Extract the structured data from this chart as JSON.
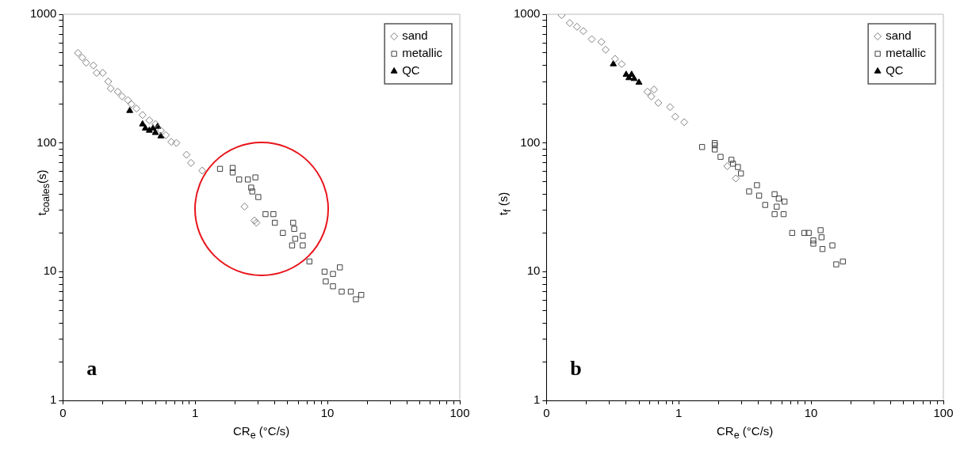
{
  "chart_data": [
    {
      "type": "scatter",
      "xlabel": "CR$_{e}$ (°C/s)",
      "ylabel": "t$_{coales}$(s)",
      "log": "xy",
      "legend": "top right",
      "annotations": [
        "a"
      ],
      "xlim": [
        0.1,
        100
      ],
      "ylim": [
        1,
        1000
      ],
      "xticks": [
        {
          "value": 0.1,
          "label": "0"
        },
        {
          "value": 0.2,
          "label": null
        },
        {
          "value": 0.3,
          "label": null
        },
        {
          "value": 0.4,
          "label": null
        },
        {
          "value": 0.5,
          "label": null
        },
        {
          "value": 0.6,
          "label": null
        },
        {
          "value": 0.7,
          "label": null
        },
        {
          "value": 0.8,
          "label": null
        },
        {
          "value": 0.9,
          "label": null
        },
        1,
        {
          "value": 2,
          "label": null
        },
        {
          "value": 3,
          "label": null
        },
        {
          "value": 4,
          "label": null
        },
        {
          "value": 5,
          "label": null
        },
        {
          "value": 6,
          "label": null
        },
        {
          "value": 7,
          "label": null
        },
        {
          "value": 8,
          "label": null
        },
        {
          "value": 9,
          "label": null
        },
        10,
        {
          "value": 20,
          "label": null
        },
        {
          "value": 30,
          "label": null
        },
        {
          "value": 40,
          "label": null
        },
        {
          "value": 50,
          "label": null
        },
        {
          "value": 60,
          "label": null
        },
        {
          "value": 70,
          "label": null
        },
        {
          "value": 80,
          "label": null
        },
        {
          "value": 90,
          "label": null
        },
        100
      ],
      "yticks": [
        1,
        {
          "value": 2,
          "label": null
        },
        {
          "value": 3,
          "label": null
        },
        {
          "value": 4,
          "label": null
        },
        {
          "value": 5,
          "label": null
        },
        {
          "value": 6,
          "label": null
        },
        {
          "value": 7,
          "label": null
        },
        {
          "value": 8,
          "label": null
        },
        {
          "value": 9,
          "label": null
        },
        10,
        {
          "value": 20,
          "label": null
        },
        {
          "value": 30,
          "label": null
        },
        {
          "value": 40,
          "label": null
        },
        {
          "value": 50,
          "label": null
        },
        {
          "value": 60,
          "label": null
        },
        {
          "value": 70,
          "label": null
        },
        {
          "value": 80,
          "label": null
        },
        {
          "value": 90,
          "label": null
        },
        100,
        {
          "value": 200,
          "label": null
        },
        {
          "value": 300,
          "label": null
        },
        {
          "value": 400,
          "label": null
        },
        {
          "value": 500,
          "label": null
        },
        {
          "value": 600,
          "label": null
        },
        {
          "value": 700,
          "label": null
        },
        {
          "value": 800,
          "label": null
        },
        {
          "value": 900,
          "label": null
        },
        1000
      ],
      "series": [
        {
          "name": "sand",
          "color": "#808080",
          "marker": "diamond",
          "x": [
            0.13,
            0.14,
            0.15,
            0.17,
            0.18,
            0.2,
            0.22,
            0.23,
            0.26,
            0.28,
            0.31,
            0.33,
            0.36,
            0.4,
            0.45,
            0.5,
            0.55,
            0.6,
            0.66,
            0.72,
            0.86,
            0.93,
            1.13,
            2.36,
            2.9,
            2.8
          ],
          "values": [
            500,
            460,
            420,
            400,
            350,
            350,
            300,
            265,
            250,
            230,
            215,
            200,
            185,
            165,
            150,
            140,
            125,
            115,
            102,
            100,
            81,
            70,
            61,
            32,
            24,
            25
          ]
        },
        {
          "name": "metallic",
          "color": "#404040",
          "marker": "square",
          "x": [
            1.54,
            1.92,
            1.92,
            2.15,
            2.5,
            2.85,
            2.65,
            2.7,
            3.0,
            3.4,
            3.9,
            4.0,
            4.6,
            5.5,
            5.6,
            5.4,
            6.5,
            6.5,
            5.7,
            7.3,
            9.5,
            9.7,
            11,
            12.4,
            11,
            12.8,
            15,
            16.4,
            18
          ],
          "values": [
            63,
            64,
            59,
            52,
            52,
            54,
            45,
            42,
            38,
            28,
            28,
            24,
            20,
            24,
            21.5,
            16,
            19,
            16,
            18,
            12,
            10,
            8.4,
            9.6,
            10.8,
            7.7,
            7,
            7,
            6.1,
            6.6
          ]
        },
        {
          "name": "QC",
          "color": "#000000",
          "marker": "triangle",
          "x": [
            0.32,
            0.4,
            0.42,
            0.45,
            0.48,
            0.5,
            0.52,
            0.55
          ],
          "values": [
            178,
            140,
            130,
            125,
            130,
            120,
            134,
            113
          ]
        }
      ]
    },
    {
      "type": "scatter",
      "xlabel": "CR$_{e}$ (°C/s)",
      "ylabel": "t$_{f}$ (s)",
      "log": "xy",
      "legend": "top right",
      "annotations": [
        "b"
      ],
      "xlim": [
        0.1,
        100
      ],
      "ylim": [
        1,
        1000
      ],
      "xticks": [
        {
          "value": 0.1,
          "label": "0"
        },
        {
          "value": 0.2,
          "label": null
        },
        {
          "value": 0.3,
          "label": null
        },
        {
          "value": 0.4,
          "label": null
        },
        {
          "value": 0.5,
          "label": null
        },
        {
          "value": 0.6,
          "label": null
        },
        {
          "value": 0.7,
          "label": null
        },
        {
          "value": 0.8,
          "label": null
        },
        {
          "value": 0.9,
          "label": null
        },
        1,
        {
          "value": 2,
          "label": null
        },
        {
          "value": 3,
          "label": null
        },
        {
          "value": 4,
          "label": null
        },
        {
          "value": 5,
          "label": null
        },
        {
          "value": 6,
          "label": null
        },
        {
          "value": 7,
          "label": null
        },
        {
          "value": 8,
          "label": null
        },
        {
          "value": 9,
          "label": null
        },
        10,
        {
          "value": 20,
          "label": null
        },
        {
          "value": 30,
          "label": null
        },
        {
          "value": 40,
          "label": null
        },
        {
          "value": 50,
          "label": null
        },
        {
          "value": 60,
          "label": null
        },
        {
          "value": 70,
          "label": null
        },
        {
          "value": 80,
          "label": null
        },
        {
          "value": 90,
          "label": null
        },
        100
      ],
      "yticks": [
        1,
        {
          "value": 2,
          "label": null
        },
        {
          "value": 3,
          "label": null
        },
        {
          "value": 4,
          "label": null
        },
        {
          "value": 5,
          "label": null
        },
        {
          "value": 6,
          "label": null
        },
        {
          "value": 7,
          "label": null
        },
        {
          "value": 8,
          "label": null
        },
        {
          "value": 9,
          "label": null
        },
        10,
        {
          "value": 20,
          "label": null
        },
        {
          "value": 30,
          "label": null
        },
        {
          "value": 40,
          "label": null
        },
        {
          "value": 50,
          "label": null
        },
        {
          "value": 60,
          "label": null
        },
        {
          "value": 70,
          "label": null
        },
        {
          "value": 80,
          "label": null
        },
        {
          "value": 90,
          "label": null
        },
        100,
        {
          "value": 200,
          "label": null
        },
        {
          "value": 300,
          "label": null
        },
        {
          "value": 400,
          "label": null
        },
        {
          "value": 500,
          "label": null
        },
        {
          "value": 600,
          "label": null
        },
        {
          "value": 700,
          "label": null
        },
        {
          "value": 800,
          "label": null
        },
        {
          "value": 900,
          "label": null
        },
        1000
      ],
      "series": [
        {
          "name": "sand",
          "color": "#808080",
          "marker": "diamond",
          "x": [
            0.13,
            0.15,
            0.17,
            0.19,
            0.22,
            0.26,
            0.28,
            0.33,
            0.37,
            0.58,
            0.62,
            0.65,
            0.7,
            0.86,
            0.94,
            1.1,
            2.33,
            2.7
          ],
          "values": [
            985,
            855,
            800,
            740,
            640,
            610,
            530,
            450,
            410,
            250,
            230,
            260,
            205,
            190,
            160,
            145,
            66,
            53
          ]
        },
        {
          "name": "metallic",
          "color": "#404040",
          "marker": "square",
          "x": [
            1.5,
            1.87,
            1.87,
            1.87,
            2.07,
            2.5,
            2.57,
            2.8,
            2.95,
            3.4,
            3.9,
            4.05,
            4.5,
            5.3,
            5.7,
            6.3,
            5.5,
            5.3,
            6.2,
            7.2,
            8.9,
            9.6,
            11.8,
            12.0,
            10.4,
            10.4,
            12.2,
            14.5,
            15.5,
            17.4
          ],
          "values": [
            93,
            100,
            96,
            89,
            78,
            74,
            69,
            65,
            58,
            42,
            47,
            39,
            33,
            40,
            37,
            35,
            32,
            28,
            28,
            20,
            20,
            20,
            21,
            18.5,
            17.5,
            16.5,
            15,
            16,
            11.4,
            12
          ]
        },
        {
          "name": "QC",
          "color": "#000000",
          "marker": "triangle",
          "x": [
            0.32,
            0.4,
            0.42,
            0.44,
            0.46,
            0.5
          ],
          "values": [
            410,
            340,
            320,
            340,
            315,
            295
          ]
        }
      ]
    }
  ]
}
